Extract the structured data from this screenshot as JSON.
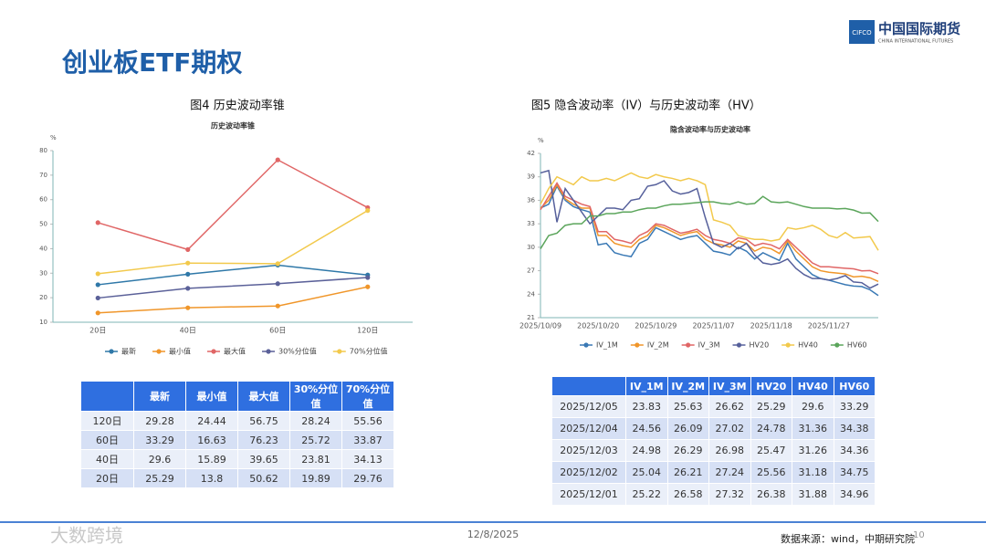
{
  "header": {
    "title": "创业板ETF期权",
    "logo": {
      "mark": "CIFCO",
      "name": "中国国际期货",
      "name_en": "CHINA INTERNATIONAL FUTURES"
    }
  },
  "chart_data": [
    {
      "type": "line",
      "caption": "图4  历史波动率锥",
      "title": "历史波动率锥",
      "y_unit": "%",
      "categories": [
        "20日",
        "40日",
        "60日",
        "120日"
      ],
      "series": [
        {
          "name": "最新",
          "color": "#2f78a8",
          "values": [
            25.29,
            29.6,
            33.29,
            29.28
          ]
        },
        {
          "name": "最小值",
          "color": "#f0962a",
          "values": [
            13.8,
            15.89,
            16.63,
            24.44
          ]
        },
        {
          "name": "最大值",
          "color": "#e06666",
          "values": [
            50.62,
            39.65,
            76.23,
            56.75
          ]
        },
        {
          "name": "30%分位值",
          "color": "#5b6199",
          "values": [
            19.89,
            23.81,
            25.72,
            28.24
          ]
        },
        {
          "name": "70%分位值",
          "color": "#f2c94c",
          "values": [
            29.76,
            34.13,
            33.87,
            55.56
          ]
        }
      ],
      "ylim": [
        10,
        80
      ],
      "yticks": [
        10,
        20,
        30,
        40,
        50,
        60,
        70,
        80
      ],
      "grid": false,
      "markers": true,
      "legend": "bottom"
    },
    {
      "type": "line",
      "caption": "图5    隐含波动率（IV）与历史波动率（HV）",
      "title": "隐含波动率与历史波动率",
      "y_unit": "%",
      "categories": [
        "2025/10/09",
        null,
        null,
        null,
        null,
        null,
        null,
        "2025/10/20",
        null,
        null,
        null,
        null,
        null,
        null,
        "2025/10/29",
        null,
        null,
        null,
        null,
        null,
        null,
        "2025/11/07",
        null,
        null,
        null,
        null,
        null,
        null,
        "2025/11/18",
        null,
        null,
        null,
        null,
        null,
        null,
        "2025/11/27",
        null,
        null,
        null,
        null,
        null,
        null
      ],
      "series": [
        {
          "name": "IV_1M",
          "color": "#3a79b5",
          "values": [
            35.0,
            35.5,
            37.8,
            36.0,
            35.2,
            34.8,
            34.5,
            30.3,
            30.5,
            29.3,
            29.0,
            28.8,
            30.5,
            31.0,
            32.5,
            32.0,
            31.5,
            31.0,
            31.3,
            31.5,
            30.5,
            29.5,
            29.3,
            29.0,
            30.0,
            29.5,
            28.5,
            29.3,
            28.8,
            28.3,
            30.5,
            28.5,
            27.5,
            26.5,
            26.0,
            25.8,
            25.5,
            25.22,
            25.04,
            24.98,
            24.56,
            23.83
          ]
        },
        {
          "name": "IV_2M",
          "color": "#f0962a",
          "values": [
            35.0,
            36.0,
            38.0,
            36.2,
            35.5,
            35.0,
            35.0,
            31.5,
            31.5,
            30.5,
            30.2,
            30.0,
            31.0,
            31.5,
            32.8,
            32.5,
            32.0,
            31.5,
            31.8,
            32.0,
            31.0,
            30.5,
            30.3,
            30.0,
            30.8,
            30.5,
            29.5,
            30.0,
            29.8,
            29.2,
            30.8,
            29.5,
            28.5,
            27.5,
            27.0,
            26.8,
            26.7,
            26.58,
            26.21,
            26.29,
            26.09,
            25.63
          ]
        },
        {
          "name": "IV_3M",
          "color": "#e06666",
          "values": [
            34.8,
            36.5,
            38.2,
            36.5,
            36.0,
            35.5,
            35.2,
            32.0,
            32.0,
            31.0,
            30.8,
            30.5,
            31.5,
            32.0,
            33.0,
            32.8,
            32.3,
            31.8,
            32.0,
            32.3,
            31.5,
            31.0,
            30.8,
            30.5,
            31.2,
            31.0,
            30.2,
            30.5,
            30.3,
            29.8,
            31.0,
            30.0,
            29.0,
            28.0,
            27.5,
            27.5,
            27.4,
            27.32,
            27.24,
            26.98,
            27.02,
            26.62
          ]
        },
        {
          "name": "HV20",
          "color": "#56609b",
          "values": [
            39.5,
            39.8,
            33.2,
            37.5,
            36.0,
            34.5,
            33.0,
            34.0,
            35.0,
            35.0,
            34.8,
            36.0,
            36.2,
            37.8,
            38.0,
            38.5,
            37.2,
            36.8,
            37.0,
            37.5,
            33.8,
            30.5,
            30.0,
            30.5,
            29.8,
            30.5,
            29.0,
            28.0,
            27.8,
            28.0,
            28.5,
            27.3,
            26.5,
            26.0,
            26.0,
            25.8,
            26.0,
            26.38,
            25.56,
            25.47,
            24.78,
            25.29
          ]
        },
        {
          "name": "HV40",
          "color": "#f2c94c",
          "values": [
            35.5,
            37.5,
            39.0,
            38.5,
            38.0,
            39.0,
            38.5,
            38.5,
            38.8,
            38.5,
            39.0,
            39.5,
            39.0,
            38.8,
            39.3,
            39.0,
            38.8,
            38.5,
            38.8,
            38.5,
            38.0,
            33.5,
            33.2,
            32.8,
            31.5,
            31.2,
            31.0,
            31.0,
            30.8,
            31.0,
            32.5,
            32.3,
            32.5,
            32.8,
            32.3,
            31.5,
            31.2,
            31.88,
            31.18,
            31.26,
            31.36,
            29.6
          ]
        },
        {
          "name": "HV60",
          "color": "#5ba55b",
          "values": [
            29.8,
            31.5,
            31.8,
            32.8,
            33.0,
            33.0,
            34.0,
            34.0,
            34.3,
            34.3,
            34.5,
            34.5,
            34.8,
            35.0,
            35.0,
            35.3,
            35.5,
            35.5,
            35.6,
            35.7,
            35.8,
            35.8,
            35.6,
            35.5,
            35.8,
            35.5,
            35.6,
            36.5,
            35.8,
            35.7,
            35.8,
            35.5,
            35.2,
            35.0,
            35.0,
            35.0,
            34.9,
            34.96,
            34.75,
            34.36,
            34.38,
            33.29
          ]
        }
      ],
      "ylim": [
        21,
        42
      ],
      "yticks": [
        21,
        24,
        27,
        30,
        33,
        36,
        39,
        42
      ],
      "grid": false,
      "markers": false,
      "legend": "bottom"
    }
  ],
  "tables": [
    {
      "columns": [
        "最新",
        "最小值",
        "最大值",
        "30%分位值",
        "70%分位值"
      ],
      "rows": [
        [
          "120日",
          "29.28",
          "24.44",
          "56.75",
          "28.24",
          "55.56"
        ],
        [
          "60日",
          "33.29",
          "16.63",
          "76.23",
          "25.72",
          "33.87"
        ],
        [
          "40日",
          "29.6",
          "15.89",
          "39.65",
          "23.81",
          "34.13"
        ],
        [
          "20日",
          "25.29",
          "13.8",
          "50.62",
          "19.89",
          "29.76"
        ]
      ]
    },
    {
      "columns": [
        "IV_1M",
        "IV_2M",
        "IV_3M",
        "HV20",
        "HV40",
        "HV60"
      ],
      "rows": [
        [
          "2025/12/05",
          "23.83",
          "25.63",
          "26.62",
          "25.29",
          "29.6",
          "33.29"
        ],
        [
          "2025/12/04",
          "24.56",
          "26.09",
          "27.02",
          "24.78",
          "31.36",
          "34.38"
        ],
        [
          "2025/12/03",
          "24.98",
          "26.29",
          "26.98",
          "25.47",
          "31.26",
          "34.36"
        ],
        [
          "2025/12/02",
          "25.04",
          "26.21",
          "27.24",
          "25.56",
          "31.18",
          "34.75"
        ],
        [
          "2025/12/01",
          "25.22",
          "26.58",
          "27.32",
          "26.38",
          "31.88",
          "34.96"
        ]
      ]
    }
  ],
  "footer": {
    "date": "12/8/2025",
    "source": "数据来源：wind，中期研究院",
    "page": "10",
    "watermark": "大数跨境"
  }
}
